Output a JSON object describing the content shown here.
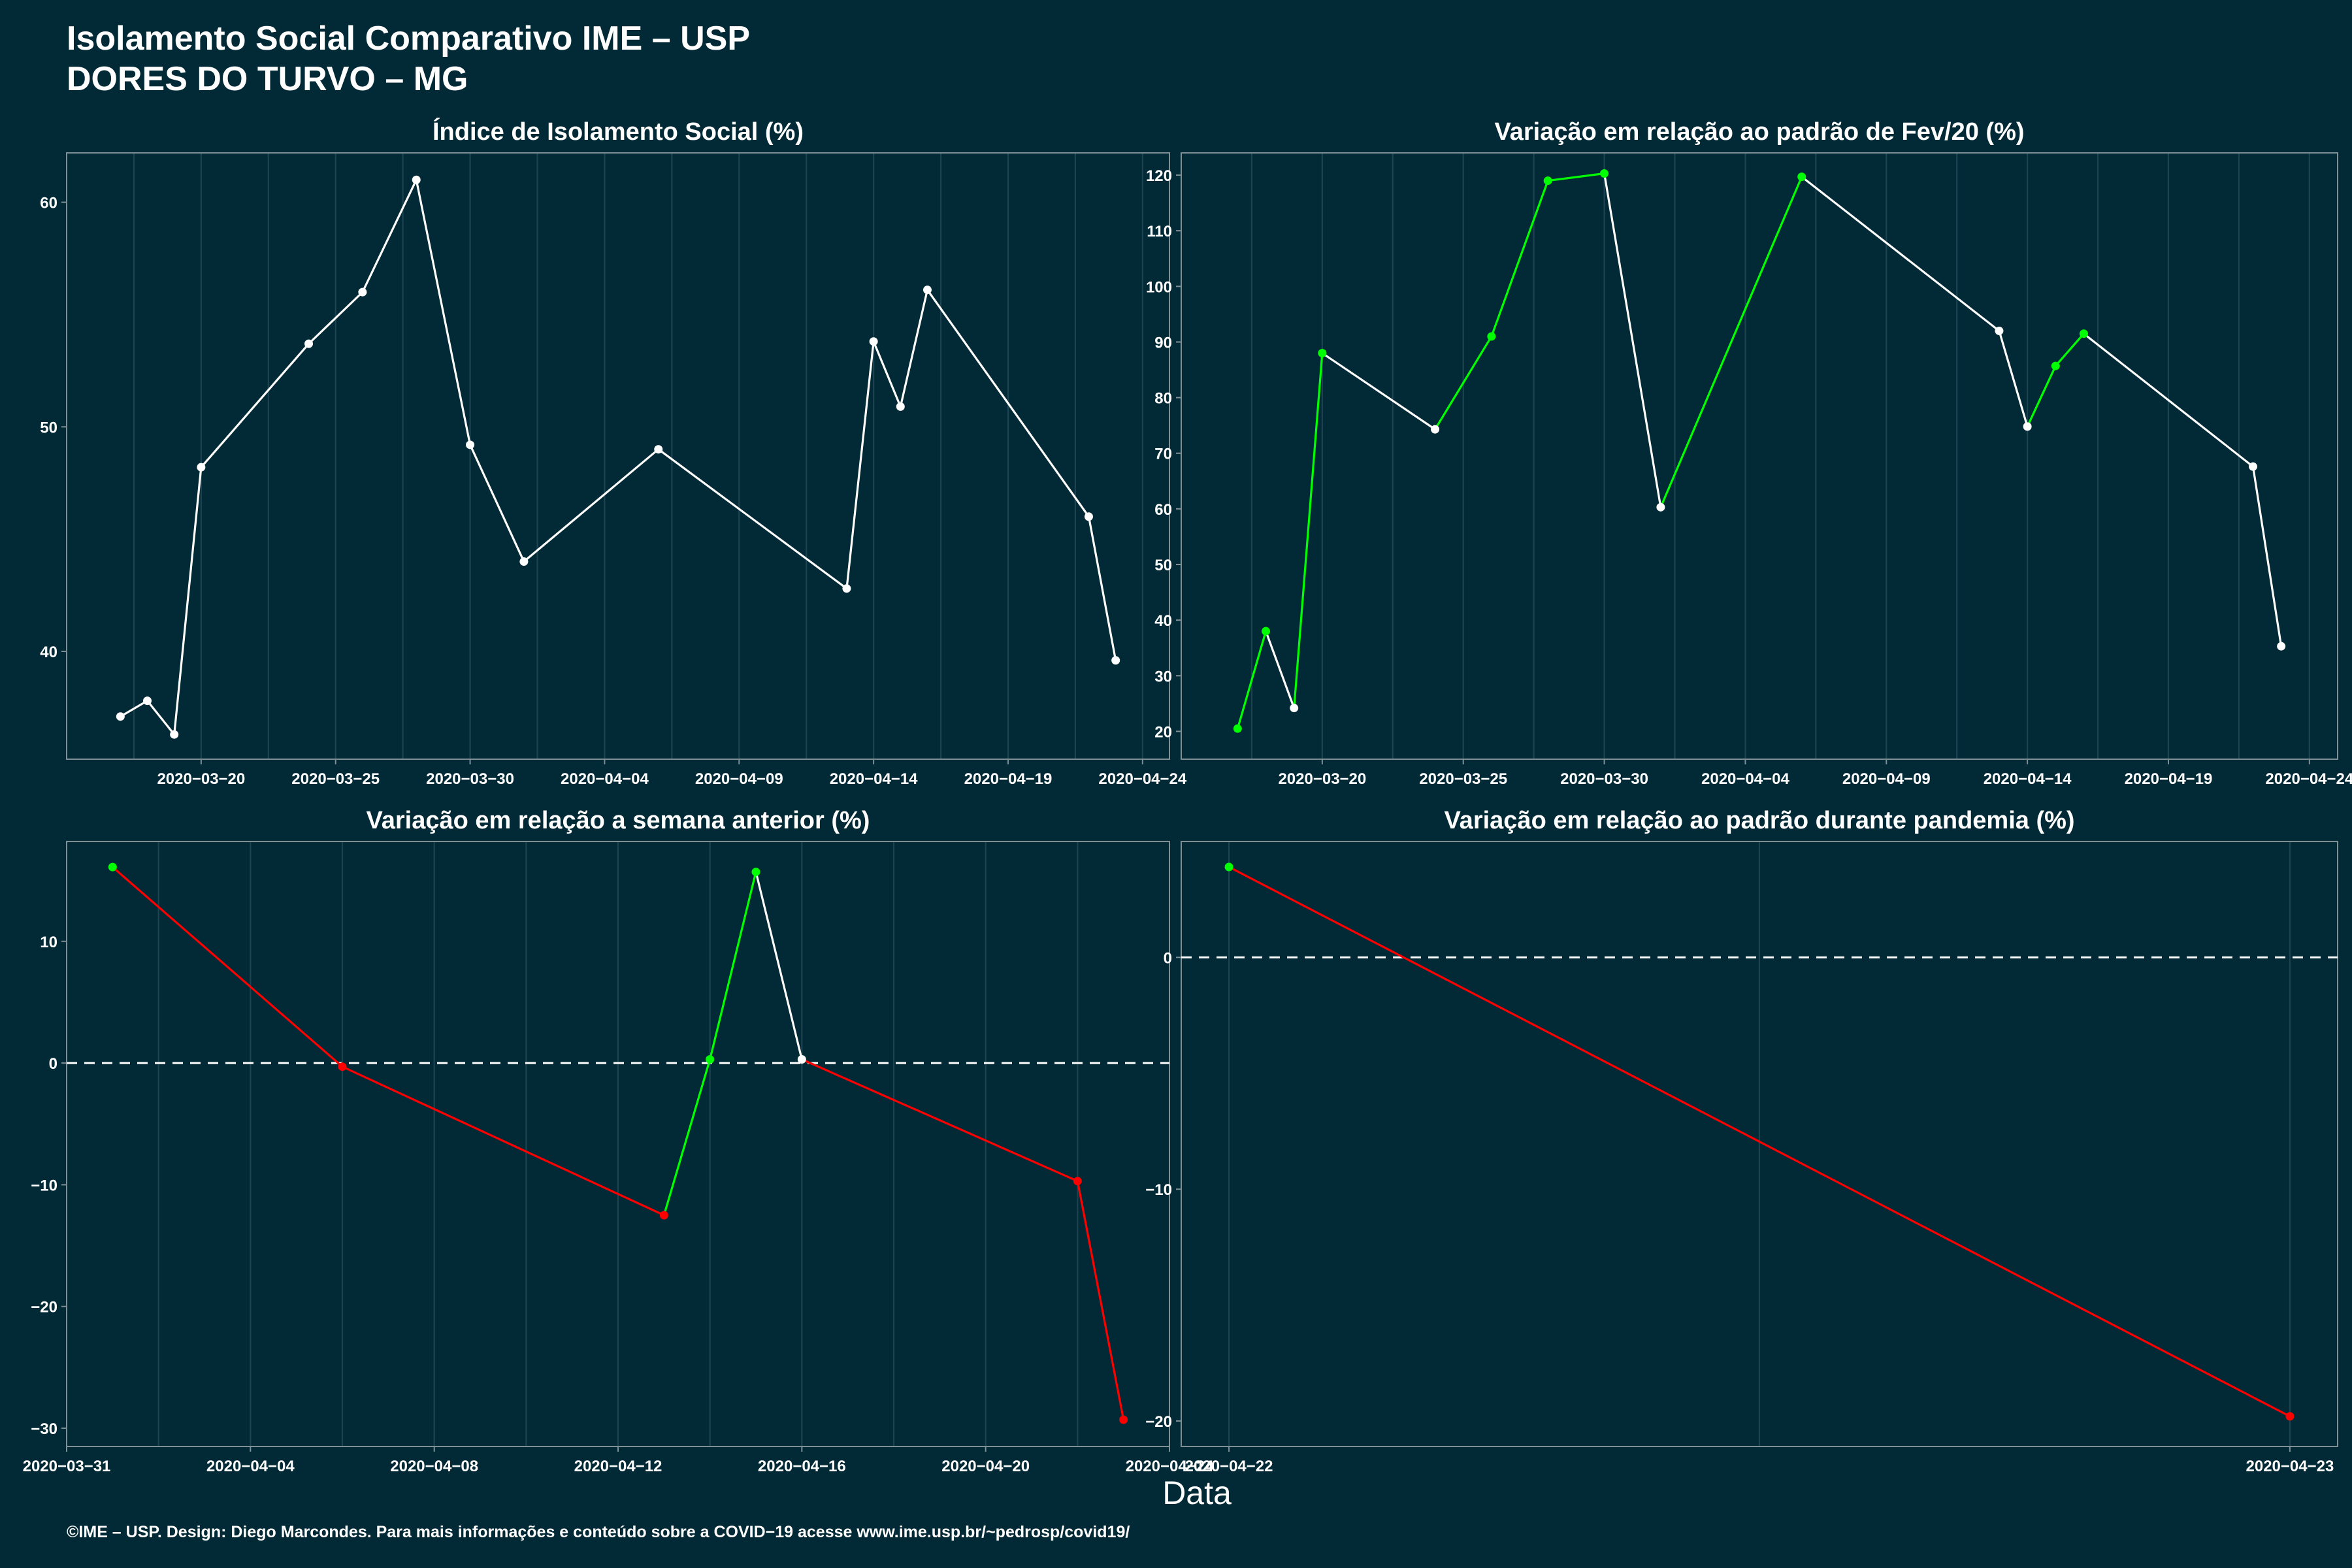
{
  "header": {
    "title_line1": "Isolamento Social Comparativo IME – USP",
    "title_line2": "DORES DO TURVO – MG"
  },
  "xlabel": "Data",
  "caption": "©IME – USP. Design: Diego Marcondes. Para mais informações e conteúdo sobre a COVID−19 acesse www.ime.usp.br/~pedrosp/covid19/",
  "colors": {
    "background": "#012a36",
    "line_white": "#ffffff",
    "up_green": "#00ff00",
    "down_red": "#ff0000"
  },
  "chart_data": [
    {
      "type": "line",
      "title": "Índice de Isolamento Social (%)",
      "x_type": "date",
      "xlim": [
        "2020-03-15",
        "2020-04-25"
      ],
      "ylim": [
        35.2,
        62.2
      ],
      "x_ticks": [
        "2020-03-20",
        "2020-03-25",
        "2020-03-30",
        "2020-04-04",
        "2020-04-09",
        "2020-04-14",
        "2020-04-19",
        "2020-04-24"
      ],
      "y_ticks": [
        40,
        50,
        60
      ],
      "zero_line": false,
      "series": [
        {
          "x": [
            "2020-03-17",
            "2020-03-18",
            "2020-03-19",
            "2020-03-20",
            "2020-03-24",
            "2020-03-26",
            "2020-03-28",
            "2020-03-30",
            "2020-04-01",
            "2020-04-06",
            "2020-04-13",
            "2020-04-14",
            "2020-04-15",
            "2020-04-16",
            "2020-04-22",
            "2020-04-23"
          ],
          "y": [
            37.1,
            37.8,
            36.3,
            48.2,
            53.7,
            56.0,
            61.0,
            49.2,
            44.0,
            49.0,
            42.8,
            53.8,
            50.9,
            56.1,
            46.0,
            39.6
          ],
          "color_mode": "white"
        }
      ]
    },
    {
      "type": "line",
      "title": "Variação em relação ao padrão de Fev/20 (%)",
      "x_type": "date",
      "xlim": [
        "2020-03-15",
        "2020-04-25"
      ],
      "ylim": [
        15,
        124
      ],
      "x_ticks": [
        "2020-03-20",
        "2020-03-25",
        "2020-03-30",
        "2020-04-04",
        "2020-04-09",
        "2020-04-14",
        "2020-04-19",
        "2020-04-24"
      ],
      "y_ticks": [
        20,
        30,
        40,
        50,
        60,
        70,
        80,
        90,
        100,
        110,
        120
      ],
      "zero_line": false,
      "series": [
        {
          "x": [
            "2020-03-17",
            "2020-03-18",
            "2020-03-19",
            "2020-03-20",
            "2020-03-24",
            "2020-03-26",
            "2020-03-28",
            "2020-03-30",
            "2020-04-01",
            "2020-04-06",
            "2020-04-13",
            "2020-04-14",
            "2020-04-15",
            "2020-04-16",
            "2020-04-22",
            "2020-04-23"
          ],
          "y": [
            20.5,
            38.0,
            24.2,
            88.0,
            74.3,
            91.0,
            119.0,
            120.3,
            60.3,
            119.7,
            92.0,
            74.8,
            85.7,
            91.5,
            67.6,
            35.3
          ],
          "color_mode": "trend_green_white"
        }
      ]
    },
    {
      "type": "line",
      "title": "Variação em relação a semana anterior (%)",
      "x_type": "date",
      "xlim": [
        "2020-03-31",
        "2020-04-24"
      ],
      "ylim": [
        -31.5,
        18.2
      ],
      "x_ticks": [
        "2020-03-31",
        "2020-04-04",
        "2020-04-08",
        "2020-04-12",
        "2020-04-16",
        "2020-04-20",
        "2020-04-24"
      ],
      "y_ticks": [
        -30,
        -20,
        -10,
        0,
        10
      ],
      "zero_line": true,
      "series": [
        {
          "x": [
            "2020-04-01",
            "2020-04-06",
            "2020-04-13",
            "2020-04-14",
            "2020-04-15",
            "2020-04-16",
            "2020-04-22",
            "2020-04-23"
          ],
          "y": [
            16.1,
            -0.3,
            -12.5,
            0.3,
            15.7,
            0.3,
            -9.7,
            -29.3
          ],
          "color_mode": "trend_sign"
        }
      ]
    },
    {
      "type": "line",
      "title": "Variação em relação ao padrão durante pandemia (%)",
      "x_type": "date",
      "xlim": [
        "2020-04-21.955",
        "2020-04-23.045"
      ],
      "ylim": [
        -21.1,
        5.0
      ],
      "x_ticks": [
        "2020-04-22",
        "2020-04-23"
      ],
      "y_ticks": [
        -20,
        -10,
        0
      ],
      "zero_line": true,
      "series": [
        {
          "x": [
            "2020-04-22",
            "2020-04-23"
          ],
          "y": [
            3.9,
            -19.8
          ],
          "color_mode": "trend_sign"
        }
      ]
    }
  ]
}
